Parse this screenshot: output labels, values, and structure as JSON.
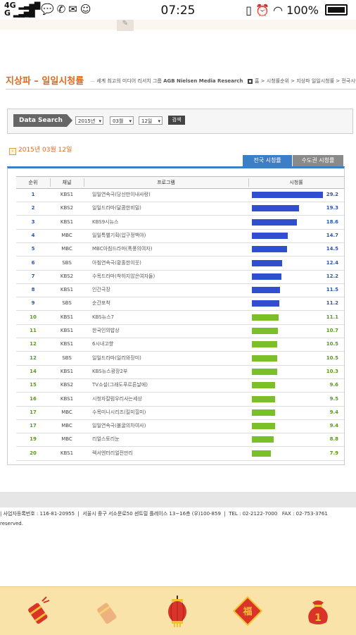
{
  "status_bar": {
    "network_top": "4G",
    "network_bottom": "G",
    "time": "07:25",
    "battery": "100%"
  },
  "page": {
    "title": "지상파 – 일일시청률",
    "subtitle": "세계 최고의 미디어 리서치 그룹",
    "company": "AGB Nielsen Media Research",
    "breadcrumb": "홈 > 시청률순위 > 지상파 일일시청률 > 전국시청률"
  },
  "search": {
    "tab_label": "Data Search",
    "year": "2015년",
    "month": "03월",
    "day": "12일",
    "button_label": "검색"
  },
  "date_label": "2015년 03월 12일",
  "tabs": {
    "national": "전국 시청률",
    "capital": "수도권 시청률"
  },
  "table": {
    "headers": {
      "rank": "순위",
      "channel": "채널",
      "program": "프로그램",
      "rating": "시청률"
    },
    "rows": [
      {
        "rank": "1",
        "channel": "KBS1",
        "program": "일일연속극(당신만이내사랑)",
        "rating": 29.2
      },
      {
        "rank": "2",
        "channel": "KBS2",
        "program": "일일드라마(달콤한비밀)",
        "rating": 19.3
      },
      {
        "rank": "3",
        "channel": "KBS1",
        "program": "KBS9시뉴스",
        "rating": 18.6
      },
      {
        "rank": "4",
        "channel": "MBC",
        "program": "일일특별기획(압구정백야)",
        "rating": 14.7
      },
      {
        "rank": "5",
        "channel": "MBC",
        "program": "MBC아침드라마(폭풍의여자)",
        "rating": 14.5
      },
      {
        "rank": "6",
        "channel": "SBS",
        "program": "아침연속극(황홀한이웃)",
        "rating": 12.4
      },
      {
        "rank": "7",
        "channel": "KBS2",
        "program": "수목드라마(착하지않은여자들)",
        "rating": 12.2
      },
      {
        "rank": "8",
        "channel": "KBS1",
        "program": "인간극장",
        "rating": 11.5
      },
      {
        "rank": "9",
        "channel": "SBS",
        "program": "순간포착",
        "rating": 11.2
      },
      {
        "rank": "10",
        "channel": "KBS1",
        "program": "KBS뉴스7",
        "rating": 11.1
      },
      {
        "rank": "11",
        "channel": "KBS1",
        "program": "한국인의밥상",
        "rating": 10.7
      },
      {
        "rank": "12",
        "channel": "KBS1",
        "program": "6시내고향",
        "rating": 10.5
      },
      {
        "rank": "12",
        "channel": "SBS",
        "program": "일일드라마(일리와장미)",
        "rating": 10.5
      },
      {
        "rank": "14",
        "channel": "KBS1",
        "program": "KBS뉴스광장2부",
        "rating": 10.3
      },
      {
        "rank": "15",
        "channel": "KBS2",
        "program": "TV소설(그래도푸르른날에)",
        "rating": 9.6
      },
      {
        "rank": "16",
        "channel": "KBS1",
        "program": "시청자칼럼우리사는세상",
        "rating": 9.5
      },
      {
        "rank": "17",
        "channel": "MBC",
        "program": "수목미니시리즈(킬미힐미)",
        "rating": 9.4
      },
      {
        "rank": "17",
        "channel": "MBC",
        "program": "일일연속극(불굴의차여사)",
        "rating": 9.4
      },
      {
        "rank": "19",
        "channel": "MBC",
        "program": "리얼스토리눈",
        "rating": 8.8
      },
      {
        "rank": "20",
        "channel": "KBS1",
        "program": "렉서엔터리얼전만리",
        "rating": 7.9
      }
    ]
  },
  "colors": {
    "accent_orange": "#e0691d",
    "tab_blue": "#3b7fc8",
    "bar_blue": "#2f4fd0",
    "bar_green": "#7bbf2a",
    "rank_blue": "#2a56b0",
    "value_green": "#5a9a18"
  },
  "footer": {
    "registration": "사업자등록번호 : 116-81-20955",
    "address": "서울시 중구 서소문로50 센트럴 플레이스 13~16층 (우)100-859",
    "tel": "TEL : 02-2122-7000",
    "fax": "FAX : 02-753-3761",
    "rights": "reserved."
  },
  "navbar": {
    "items": [
      "firecracker-icon",
      "firecracker-faded-icon",
      "lantern-icon",
      "fortune-sign-icon",
      "lucky-bag-icon"
    ],
    "badge": "1"
  }
}
